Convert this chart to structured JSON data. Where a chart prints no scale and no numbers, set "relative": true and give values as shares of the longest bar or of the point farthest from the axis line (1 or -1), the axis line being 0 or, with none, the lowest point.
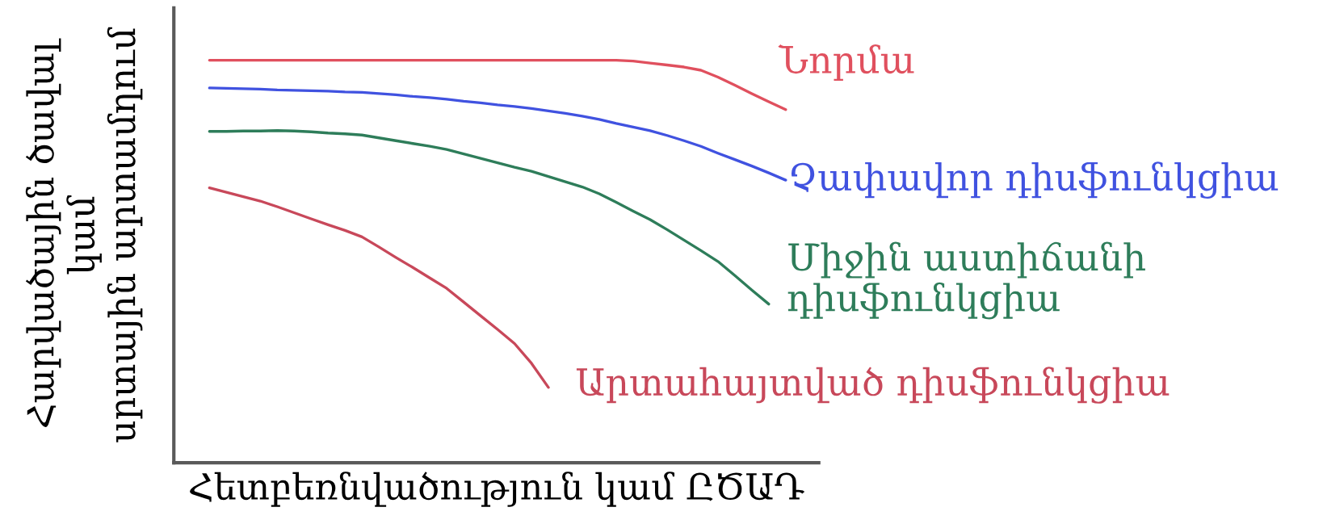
{
  "chart_data": {
    "type": "line",
    "relative": true,
    "tick_labels": false,
    "xlabel": "Հետբեռնվածություն կամ ԸԾԱԴ",
    "ylabel": "Հարվածային ծավալ\nկամ\nսրտային արտամղում",
    "categories": [
      null,
      null,
      null,
      null,
      null,
      null,
      null,
      null,
      null,
      null,
      null,
      null,
      null,
      null,
      null,
      null,
      null,
      null,
      null,
      null,
      null,
      null,
      null,
      null,
      null,
      null,
      null,
      null,
      null,
      null,
      null,
      null,
      null,
      null,
      null
    ],
    "series": [
      {
        "name": "Նորմա",
        "color": "#e0505e",
        "values": [
          1,
          1,
          1,
          1,
          1,
          1,
          1,
          1,
          1,
          1,
          1,
          1,
          1,
          1,
          1,
          1,
          1,
          1,
          1,
          1,
          1,
          1,
          1,
          1,
          1,
          0.998,
          0.993,
          0.988,
          0.983,
          0.975,
          0.958,
          0.938,
          0.917,
          0.897,
          0.877
        ]
      },
      {
        "name": "Չափավոր դիսֆունկցիա",
        "color": "#4052e0",
        "values": [
          0.931,
          0.93,
          0.929,
          0.928,
          0.926,
          0.925,
          0.924,
          0.923,
          0.921,
          0.92,
          0.917,
          0.914,
          0.91,
          0.907,
          0.903,
          0.898,
          0.894,
          0.889,
          0.885,
          0.88,
          0.874,
          0.868,
          0.861,
          0.853,
          0.843,
          0.834,
          0.825,
          0.813,
          0.8,
          0.786,
          0.769,
          0.753,
          0.737,
          0.72,
          0.702
        ]
      },
      {
        "name": "Միջին աստիճանի\nդիսֆունկցիա",
        "color": "#2e7d5a",
        "values": [
          0.823,
          0.823,
          0.824,
          0.824,
          0.825,
          0.824,
          0.822,
          0.819,
          0.817,
          0.814,
          0.807,
          0.8,
          0.793,
          0.786,
          0.778,
          0.767,
          0.756,
          0.745,
          0.734,
          0.724,
          0.711,
          0.698,
          0.685,
          0.668,
          0.647,
          0.625,
          0.604,
          0.579,
          0.553,
          0.527,
          0.5,
          0.465,
          0.429,
          0.394,
          null
        ]
      },
      {
        "name": "Արտահայտված դիսֆունկցիա",
        "color": "#c8485a",
        "values": [
          0.683,
          0.672,
          0.661,
          0.65,
          0.636,
          0.621,
          0.606,
          0.591,
          0.577,
          0.561,
          0.536,
          0.51,
          0.485,
          0.459,
          0.433,
          0.399,
          0.365,
          0.331,
          0.296,
          0.247,
          0.187,
          null,
          null,
          null,
          null,
          null,
          null,
          null,
          null,
          null,
          null,
          null,
          null,
          null,
          null
        ]
      }
    ]
  }
}
